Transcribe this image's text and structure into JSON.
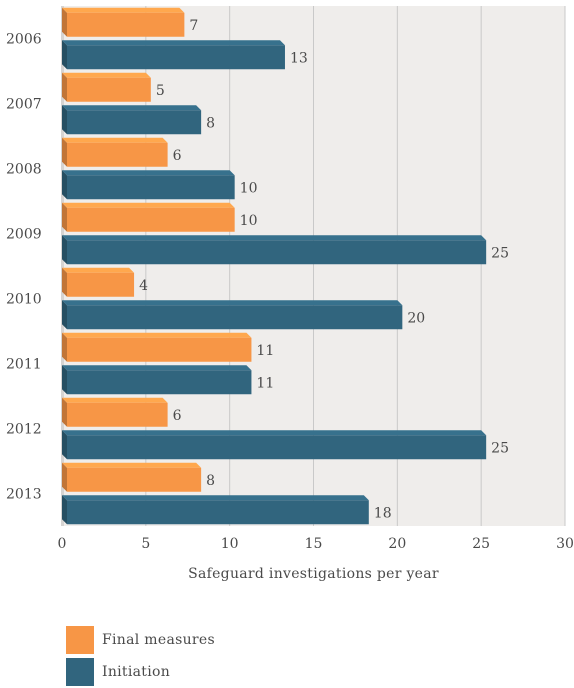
{
  "chart_data": {
    "type": "bar",
    "orientation": "horizontal",
    "categories": [
      "2006",
      "2007",
      "2008",
      "2009",
      "2010",
      "2011",
      "2012",
      "2013"
    ],
    "series": [
      {
        "name": "Final measures",
        "values": [
          7,
          5,
          6,
          10,
          4,
          11,
          6,
          8
        ],
        "color": "#f79646"
      },
      {
        "name": "Initiation",
        "values": [
          13,
          8,
          10,
          25,
          20,
          11,
          25,
          18
        ],
        "color": "#31657e"
      }
    ],
    "xlabel": "Safeguard investigations per year",
    "ylabel": "",
    "title": "",
    "xlim": [
      0,
      30
    ],
    "xticks": [
      0,
      5,
      10,
      15,
      20,
      25,
      30
    ],
    "grid": true,
    "legend_position": "bottom-left",
    "plot_background": "#efedeb",
    "grid_color": "#c9c9c9"
  }
}
